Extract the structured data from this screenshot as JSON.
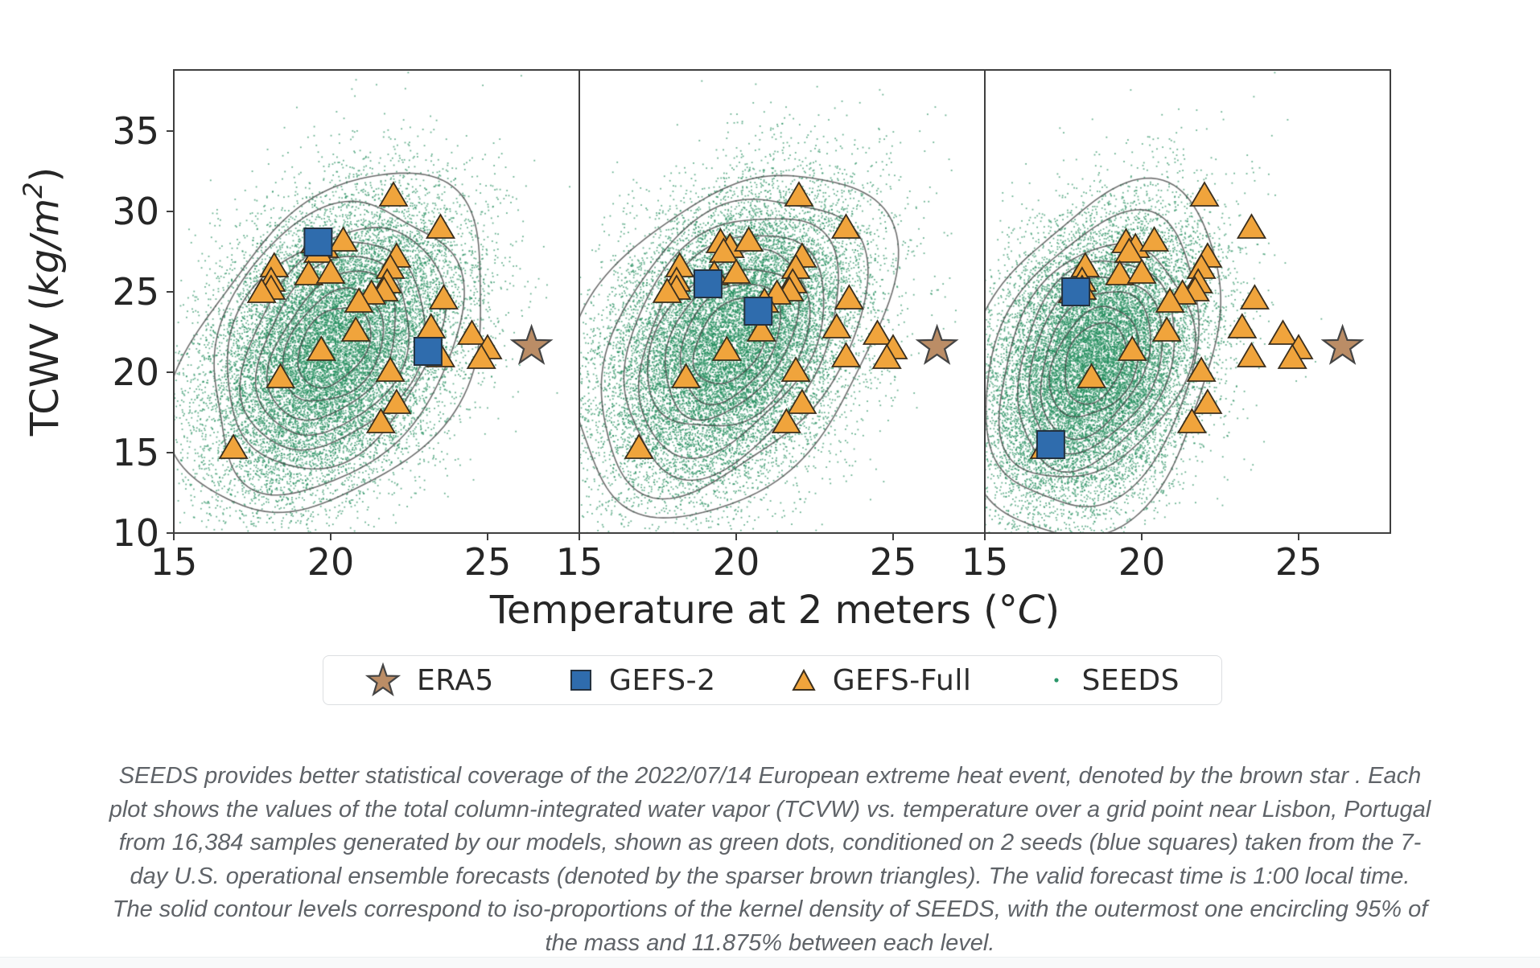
{
  "legend": {
    "items": [
      {
        "id": "era5",
        "label": "ERA5",
        "marker": "star",
        "color": "#bb8d66"
      },
      {
        "id": "gefs2",
        "label": "GEFS-2",
        "marker": "square",
        "color": "#2f6cad"
      },
      {
        "id": "gefsfull",
        "label": "GEFS-Full",
        "marker": "triangle",
        "color": "#f0a43c"
      },
      {
        "id": "seeds",
        "label": "SEEDS",
        "marker": "dot",
        "color": "#2a9669"
      }
    ]
  },
  "caption": {
    "lines": [
      "SEEDS provides better statistical coverage of the 2022/07/14 European extreme heat event, denoted by the brown star . Each",
      "plot shows the values of the total column-integrated water vapor (TCVW) vs. temperature over a grid point near Lisbon, Portugal",
      "from 16,384 samples generated by our models, shown as green dots, conditioned on 2 seeds (blue squares) taken from the 7-",
      "day U.S. operational ensemble forecasts (denoted by the sparser brown triangles). The valid forecast time is 1:00 local time.",
      "The solid contour levels correspond to iso-proportions of the kernel density of SEEDS, with the outermost one encircling 95% of",
      "the mass and 11.875% between each level."
    ]
  },
  "chart_data": {
    "type": "scatter",
    "title": "",
    "xlabel": "Temperature at 2 meters (°C)",
    "ylabel": "TCWV (kg/m²)",
    "xlabel_parts": {
      "prefix": "Temperature at 2 meters (",
      "degree": "°",
      "unit_italic": "C",
      "close": ")"
    },
    "ylabel_parts": {
      "prefix": "TCWV (",
      "unit_italic": "kg/m",
      "sup": "2",
      "close": ")"
    },
    "xlim": [
      15,
      27.9
    ],
    "ylim": [
      10,
      38.8
    ],
    "x_ticks": [
      15,
      20,
      25
    ],
    "y_ticks": [
      10,
      15,
      20,
      25,
      30,
      35
    ],
    "grid": false,
    "legend_position": "below",
    "series_legend": [
      "ERA5",
      "GEFS-2",
      "GEFS-Full",
      "SEEDS"
    ],
    "era5": [
      26.4,
      21.6
    ],
    "gefs_full": [
      [
        22.0,
        31.0
      ],
      [
        23.5,
        29.0
      ],
      [
        19.5,
        28.1
      ],
      [
        19.8,
        27.8
      ],
      [
        19.6,
        27.5
      ],
      [
        20.4,
        28.2
      ],
      [
        22.1,
        27.2
      ],
      [
        21.9,
        26.5
      ],
      [
        18.2,
        26.6
      ],
      [
        19.3,
        26.1
      ],
      [
        20.0,
        26.2
      ],
      [
        18.1,
        25.7
      ],
      [
        18.1,
        25.2
      ],
      [
        17.8,
        25.0
      ],
      [
        21.8,
        25.6
      ],
      [
        21.7,
        25.1
      ],
      [
        21.3,
        24.9
      ],
      [
        23.6,
        24.6
      ],
      [
        20.9,
        24.4
      ],
      [
        23.2,
        22.8
      ],
      [
        24.5,
        22.4
      ],
      [
        25.0,
        21.5
      ],
      [
        24.8,
        20.9
      ],
      [
        23.5,
        21.0
      ],
      [
        20.8,
        22.6
      ],
      [
        19.7,
        21.4
      ],
      [
        21.9,
        20.1
      ],
      [
        18.4,
        19.7
      ],
      [
        22.1,
        18.1
      ],
      [
        16.9,
        15.3
      ],
      [
        21.6,
        16.9
      ]
    ],
    "contours": {
      "outermost_mass_pct": 95,
      "step_pct": 11.875,
      "n_levels": 8
    },
    "panels": [
      {
        "name": "panel-1",
        "gefs2": [
          [
            19.6,
            28.1
          ],
          [
            23.1,
            21.3
          ]
        ],
        "seeds_cloud": {
          "n": 16384,
          "center": [
            20.1,
            21.6
          ],
          "sigma": [
            2.05,
            4.6
          ],
          "rho": 0.35
        }
      },
      {
        "name": "panel-2",
        "gefs2": [
          [
            19.1,
            25.5
          ],
          [
            20.7,
            23.8
          ]
        ],
        "seeds_cloud": {
          "n": 16384,
          "center": [
            19.8,
            21.9
          ],
          "sigma": [
            2.1,
            4.7
          ],
          "rho": 0.35
        }
      },
      {
        "name": "panel-3",
        "gefs2": [
          [
            17.9,
            25.0
          ],
          [
            17.1,
            15.5
          ]
        ],
        "seeds_cloud": {
          "n": 16384,
          "center": [
            18.5,
            20.6
          ],
          "sigma": [
            1.8,
            4.5
          ],
          "rho": 0.32
        }
      }
    ]
  }
}
